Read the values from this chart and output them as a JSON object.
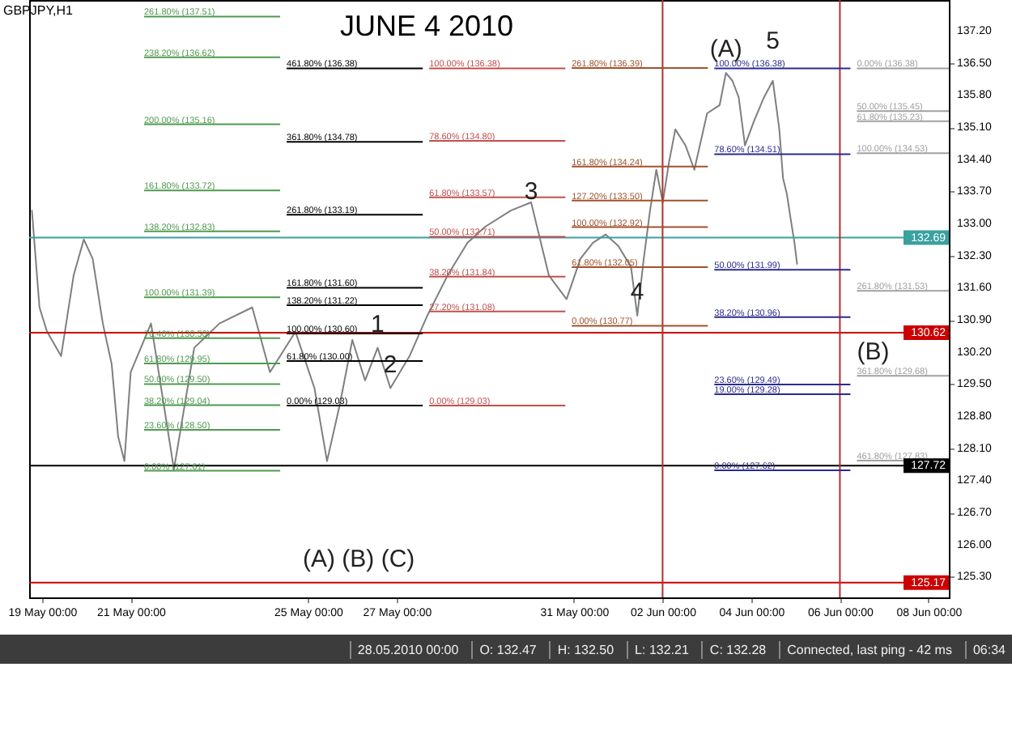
{
  "chart_data": {
    "type": "line",
    "title": "JUNE 4 2010",
    "subtitle": "GBPJPY,H1",
    "x": [
      "2010-05-18T18:30",
      "2010-05-18T22:36",
      "2010-05-19T02:42",
      "2010-05-19T10:18",
      "2010-05-19T17:06",
      "2010-05-19T22:36",
      "2010-05-20T03:24",
      "2010-05-20T08:54",
      "2010-05-20T13:42",
      "2010-05-20T17:12",
      "2010-05-20T20:36",
      "2010-05-21T00:00",
      "2010-05-21T11:00",
      "2010-05-21T23:24",
      "2010-05-22T10:24",
      "2010-05-23T00:00",
      "2010-05-23T17:48",
      "2010-05-24T03:24",
      "2010-05-24T17:12",
      "2010-05-25T03:30",
      "2010-05-25T10:18",
      "2010-05-25T17:12",
      "2010-05-26T00:00",
      "2010-05-26T06:54",
      "2010-05-26T13:42",
      "2010-05-26T20:36",
      "2010-05-27T07:00",
      "2010-05-27T16:36",
      "2010-05-28T03:36",
      "2010-05-28T14:24",
      "2010-05-29T00:00",
      "2010-05-29T13:48",
      "2010-05-30T00:48",
      "2010-05-30T10:24",
      "2010-05-30T20:00",
      "2010-05-31T03:30",
      "2010-05-31T10:18",
      "2010-05-31T17:12",
      "2010-06-01T00:00",
      "2010-06-01T06:54",
      "2010-06-01T10:18",
      "2010-06-01T13:48",
      "2010-06-01T17:12",
      "2010-06-01T20:36",
      "2010-06-02T00:06",
      "2010-06-02T03:30",
      "2010-06-02T06:54",
      "2010-06-02T12:24",
      "2010-06-02T17:12",
      "2010-06-03T00:06",
      "2010-06-03T06:54",
      "2010-06-03T10:18",
      "2010-06-03T13:48",
      "2010-06-03T17:12",
      "2010-06-03T20:36",
      "2010-06-04T01:24",
      "2010-06-04T06:54",
      "2010-06-04T11:42",
      "2010-06-04T15:12",
      "2010-06-04T17:12",
      "2010-06-04T19:18",
      "2010-06-04T21:18",
      "2010-06-04T23:24",
      "2010-06-05T00:48"
    ],
    "series": [
      {
        "color": "#7f7f7f",
        "values": [
          133.28,
          131.17,
          130.64,
          130.11,
          131.87,
          132.65,
          132.23,
          130.82,
          129.93,
          128.35,
          127.82,
          129.76,
          130.82,
          127.64,
          130.29,
          130.82,
          131.17,
          129.76,
          130.64,
          129.41,
          127.82,
          129.05,
          130.46,
          129.58,
          130.29,
          129.41,
          130.11,
          130.99,
          131.87,
          132.58,
          132.93,
          133.28,
          133.46,
          131.87,
          131.35,
          132.23,
          132.58,
          132.76,
          132.51,
          132.05,
          130.99,
          132.23,
          133.28,
          134.17,
          133.46,
          134.34,
          135.05,
          134.7,
          134.17,
          135.4,
          135.58,
          136.28,
          136.11,
          135.75,
          134.7,
          135.22,
          135.75,
          136.11,
          135.05,
          133.99,
          133.64,
          133.11,
          132.58,
          132.12
        ]
      }
    ],
    "xlim": [
      "2010-05-18T17:00",
      "2010-06-08T11:00"
    ],
    "ylim": [
      124.85,
      137.87
    ],
    "xticks": [
      {
        "value": "2010-05-19T00:00",
        "label": "19 May 00:00"
      },
      {
        "value": "2010-05-21T00:00",
        "label": "21 May 00:00"
      },
      {
        "value": "2010-05-25T00:00",
        "label": "25 May 00:00"
      },
      {
        "value": "2010-05-27T00:00",
        "label": "27 May 00:00"
      },
      {
        "value": "2010-05-31T00:00",
        "label": "31 May 00:00"
      },
      {
        "value": "2010-06-02T00:00",
        "label": "02 Jun 00:00"
      },
      {
        "value": "2010-06-04T00:00",
        "label": "04 Jun 00:00"
      },
      {
        "value": "2010-06-06T00:00",
        "label": "06 Jun 00:00"
      },
      {
        "value": "2010-06-08T00:00",
        "label": "08 Jun 00:00"
      }
    ],
    "yticks": [
      {
        "value": 125.3,
        "label": "125.30"
      },
      {
        "value": 126,
        "label": "126.00"
      },
      {
        "value": 126.7,
        "label": "126.70"
      },
      {
        "value": 127.4,
        "label": "127.40"
      },
      {
        "value": 128.1,
        "label": "128.10"
      },
      {
        "value": 128.8,
        "label": "128.80"
      },
      {
        "value": 129.5,
        "label": "129.50"
      },
      {
        "value": 130.2,
        "label": "130.20"
      },
      {
        "value": 130.9,
        "label": "130.90"
      },
      {
        "value": 131.6,
        "label": "131.60"
      },
      {
        "value": 132.3,
        "label": "132.30"
      },
      {
        "value": 133,
        "label": "133.00"
      },
      {
        "value": 133.7,
        "label": "133.70"
      },
      {
        "value": 134.4,
        "label": "134.40"
      },
      {
        "value": 135.1,
        "label": "135.10"
      },
      {
        "value": 135.8,
        "label": "135.80"
      },
      {
        "value": 136.5,
        "label": "136.50"
      },
      {
        "value": 137.2,
        "label": "137.20"
      }
    ],
    "ref_lines": [
      {
        "axis": "y",
        "value": 132.69,
        "label": "132.69",
        "color": "#3aa0a0"
      },
      {
        "axis": "y",
        "value": 130.62,
        "label": "130.62",
        "color": "#cc0000"
      },
      {
        "axis": "y",
        "value": 127.72,
        "label": "127.72",
        "color": "#000000"
      },
      {
        "axis": "y",
        "value": 125.17,
        "label": "125.17",
        "color": "#cc0000"
      },
      {
        "axis": "x",
        "value": "2010-06-02T00:00",
        "color": "#b03030"
      },
      {
        "axis": "x",
        "value": "2010-06-06T00:00",
        "color": "#b03030"
      },
      {
        "axis": "y",
        "value": 137.51,
        "label": "261.80% (137.51)",
        "color": "#4f9a4f",
        "line_style": "solid"
      },
      {
        "axis": "y",
        "value": 136.62,
        "label": "238.20% (136.62)",
        "color": "#4f9a4f",
        "line_style": "solid"
      },
      {
        "axis": "y",
        "value": 135.16,
        "label": "200.00% (135.16)",
        "color": "#4f9a4f",
        "line_style": "solid"
      },
      {
        "axis": "y",
        "value": 133.72,
        "label": "161.80% (133.72)",
        "color": "#4f9a4f",
        "line_style": "solid"
      },
      {
        "axis": "y",
        "value": 132.83,
        "label": "138.20% (132.83)",
        "color": "#4f9a4f",
        "line_style": "solid"
      },
      {
        "axis": "y",
        "value": 131.39,
        "label": "100.00% (131.39)",
        "color": "#4f9a4f",
        "line_style": "solid"
      },
      {
        "axis": "y",
        "value": 130.5,
        "label": "76.40% (130.50)",
        "color": "#4f9a4f",
        "line_style": "solid"
      },
      {
        "axis": "y",
        "value": 129.95,
        "label": "61.80% (129.95)",
        "color": "#4f9a4f",
        "line_style": "solid"
      },
      {
        "axis": "y",
        "value": 129.5,
        "label": "50.00% (129.50)",
        "color": "#4f9a4f",
        "line_style": "solid"
      },
      {
        "axis": "y",
        "value": 129.04,
        "label": "38.20% (129.04)",
        "color": "#4f9a4f",
        "line_style": "solid"
      },
      {
        "axis": "y",
        "value": 128.5,
        "label": "23.60% (128.50)",
        "color": "#4f9a4f",
        "line_style": "solid"
      },
      {
        "axis": "y",
        "value": 127.61,
        "label": "0.00% (127.61)",
        "color": "#4f9a4f",
        "line_style": "solid"
      },
      {
        "axis": "y",
        "value": 136.38,
        "label": "461.80% (136.38)",
        "color": "#000000",
        "line_style": "solid"
      },
      {
        "axis": "y",
        "value": 134.78,
        "label": "361.80% (134.78)",
        "color": "#000000",
        "line_style": "solid"
      },
      {
        "axis": "y",
        "value": 133.19,
        "label": "261.80% (133.19)",
        "color": "#000000",
        "line_style": "solid"
      },
      {
        "axis": "y",
        "value": 131.6,
        "label": "161.80% (131.60)",
        "color": "#000000",
        "line_style": "solid"
      },
      {
        "axis": "y",
        "value": 131.22,
        "label": "138.20% (131.22)",
        "color": "#000000",
        "line_style": "solid"
      },
      {
        "axis": "y",
        "value": 130.6,
        "label": "100.00% (130.60)",
        "color": "#000000",
        "line_style": "solid"
      },
      {
        "axis": "y",
        "value": 130,
        "label": "61.80% (130.00)",
        "color": "#000000",
        "line_style": "solid"
      },
      {
        "axis": "y",
        "value": 129.03,
        "label": "0.00% (129.03)",
        "color": "#000000",
        "line_style": "solid"
      },
      {
        "axis": "y",
        "value": 136.38,
        "label": "100.00% (136.38)",
        "color": "#c0504d",
        "line_style": "solid"
      },
      {
        "axis": "y",
        "value": 134.8,
        "label": "78.60% (134.80)",
        "color": "#c0504d",
        "line_style": "solid"
      },
      {
        "axis": "y",
        "value": 133.57,
        "label": "61.80% (133.57)",
        "color": "#c0504d",
        "line_style": "solid"
      },
      {
        "axis": "y",
        "value": 132.71,
        "label": "50.00% (132.71)",
        "color": "#c0504d",
        "line_style": "solid"
      },
      {
        "axis": "y",
        "value": 131.84,
        "label": "38.20% (131.84)",
        "color": "#c0504d",
        "line_style": "solid"
      },
      {
        "axis": "y",
        "value": 131.08,
        "label": "27.20% (131.08)",
        "color": "#c0504d",
        "line_style": "solid"
      },
      {
        "axis": "y",
        "value": 129.03,
        "label": "0.00% (129.03)",
        "color": "#c0504d",
        "line_style": "solid"
      },
      {
        "axis": "y",
        "value": 136.39,
        "label": "261.80% (136.39)",
        "color": "#a0522d",
        "line_style": "solid"
      },
      {
        "axis": "y",
        "value": 134.24,
        "label": "161.80% (134.24)",
        "color": "#a0522d",
        "line_style": "solid"
      },
      {
        "axis": "y",
        "value": 133.5,
        "label": "127.20% (133.50)",
        "color": "#a0522d",
        "line_style": "solid"
      },
      {
        "axis": "y",
        "value": 132.92,
        "label": "100.00% (132.92)",
        "color": "#a0522d",
        "line_style": "solid"
      },
      {
        "axis": "y",
        "value": 132.05,
        "label": "61.80% (132.05)",
        "color": "#a0522d",
        "line_style": "solid"
      },
      {
        "axis": "y",
        "value": 130.77,
        "label": "0.00% (130.77)",
        "color": "#a0522d",
        "line_style": "solid"
      },
      {
        "axis": "y",
        "value": 136.38,
        "label": "100.00% (136.38)",
        "color": "#2b2b8f",
        "line_style": "solid"
      },
      {
        "axis": "y",
        "value": 134.51,
        "label": "78.60% (134.51)",
        "color": "#2b2b8f",
        "line_style": "solid"
      },
      {
        "axis": "y",
        "value": 131.99,
        "label": "50.00% (131.99)",
        "color": "#2b2b8f",
        "line_style": "solid"
      },
      {
        "axis": "y",
        "value": 130.96,
        "label": "38.20% (130.96)",
        "color": "#2b2b8f",
        "line_style": "solid"
      },
      {
        "axis": "y",
        "value": 129.49,
        "label": "23.60% (129.49)",
        "color": "#2b2b8f",
        "line_style": "solid"
      },
      {
        "axis": "y",
        "value": 129.28,
        "label": "19.00% (129.28)",
        "color": "#2b2b8f",
        "line_style": "solid"
      },
      {
        "axis": "y",
        "value": 127.62,
        "label": "0.00% (127.62)",
        "color": "#2b2b8f",
        "line_style": "solid"
      },
      {
        "axis": "y",
        "value": 136.38,
        "label": "0.00% (136.38)",
        "color": "#a0a0a0",
        "line_style": "solid"
      },
      {
        "axis": "y",
        "value": 135.45,
        "label": "50.00% (135.45)",
        "color": "#a0a0a0",
        "line_style": "solid"
      },
      {
        "axis": "y",
        "value": 135.23,
        "label": "61.80% (135.23)",
        "color": "#a0a0a0",
        "line_style": "solid"
      },
      {
        "axis": "y",
        "value": 134.53,
        "label": "100.00% (134.53)",
        "color": "#a0a0a0",
        "line_style": "solid"
      },
      {
        "axis": "y",
        "value": 131.53,
        "label": "261.80% (131.53)",
        "color": "#a0a0a0",
        "line_style": "solid"
      },
      {
        "axis": "y",
        "value": 129.68,
        "label": "361.80% (129.68)",
        "color": "#a0a0a0",
        "line_style": "solid"
      },
      {
        "axis": "y",
        "value": 127.83,
        "label": "461.80% (127.83)",
        "color": "#a0a0a0",
        "line_style": "solid"
      }
    ],
    "annotations": [
      {
        "text": "(A)",
        "x": "2010-06-03T10:18",
        "y": 136.28
      },
      {
        "text": "5",
        "x": "2010-06-04T11:42",
        "y": 136.45
      },
      {
        "text": "3",
        "x": "2010-05-30T00:48",
        "y": 133.18
      },
      {
        "text": "4",
        "x": "2010-06-01T10:18",
        "y": 130.99
      },
      {
        "text": "1",
        "x": "2010-05-26T13:42",
        "y": 130.29
      },
      {
        "text": "2",
        "x": "2010-05-26T20:36",
        "y": 129.41
      },
      {
        "text": "(B)",
        "x": "2010-06-06T18:00",
        "y": 129.68
      },
      {
        "text": "(A) (B) (C)",
        "x": "2010-05-26T03:30",
        "y": 125.17
      },
      "28.05.2010 00:00",
      "O: 132.47",
      "H: 132.50",
      "L: 132.21",
      "C: 132.28",
      "Connected, last ping - 42 ms",
      "06:34"
    ]
  }
}
